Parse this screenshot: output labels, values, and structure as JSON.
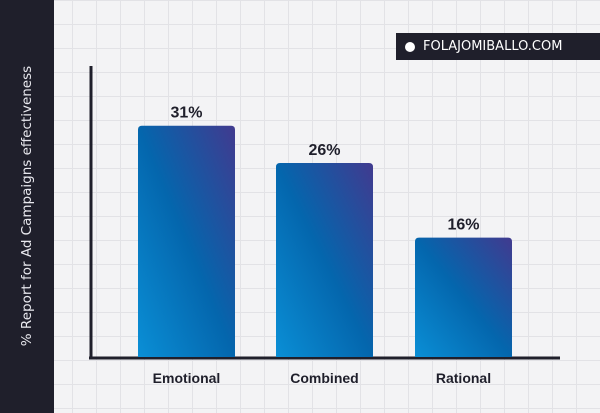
{
  "watermark": "FOLAJOMIBALLO.COM",
  "chart_data": {
    "type": "bar",
    "title": "",
    "xlabel": "",
    "ylabel": "% Report for Ad Campaigns effectiveness",
    "categories": [
      "Emotional",
      "Combined",
      "Rational"
    ],
    "values": [
      31,
      26,
      16
    ],
    "data_labels": [
      "31%",
      "26%",
      "16%"
    ],
    "ylim": [
      0,
      39
    ],
    "grid": false,
    "colors": {
      "bar_light": "#0a8fd6",
      "bar_dark": "#3d3a8e",
      "axis": "#1f1f2b",
      "sidebar": "#1f1f2b"
    }
  }
}
